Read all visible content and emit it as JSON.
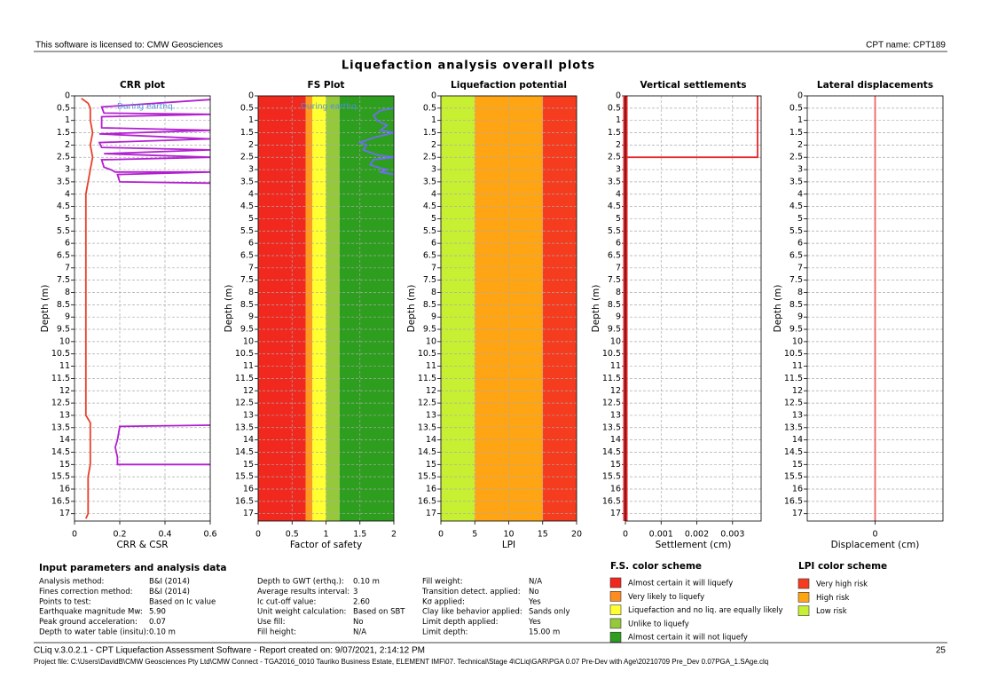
{
  "header": {
    "license": "This software is licensed to: CMW Geosciences",
    "cpt_name": "CPT name: CPT189",
    "title": "Liquefaction analysis overall plots"
  },
  "chart_data": [
    {
      "type": "line",
      "title": "CRR plot",
      "xlabel": "CRR & CSR",
      "ylabel": "Depth (m)",
      "y_inverted": true,
      "grid": true,
      "annotation": "During earthq.",
      "xlim": [
        0,
        0.6
      ],
      "xticks": [
        0,
        0.2,
        0.4,
        0.6
      ],
      "ylim": [
        0,
        17.3
      ],
      "yticks": [
        0,
        0.5,
        1,
        1.5,
        2,
        2.5,
        3,
        3.5,
        4,
        4.5,
        5,
        5.5,
        6,
        6.5,
        7,
        7.5,
        8,
        8.5,
        9,
        9.5,
        10,
        10.5,
        11,
        11.5,
        12,
        12.5,
        13,
        13.5,
        14,
        14.5,
        15,
        15.5,
        16,
        16.5,
        17
      ],
      "series": [
        {
          "color": "#e8402a",
          "depth": [
            0.1,
            0.3,
            0.5,
            1,
            1.5,
            2,
            2.5,
            3,
            3.5,
            4,
            5,
            6,
            8,
            10,
            12,
            13,
            13.3,
            13.5,
            14,
            15,
            15.5,
            16,
            17,
            17.2
          ],
          "values": [
            0.03,
            0.06,
            0.07,
            0.07,
            0.08,
            0.07,
            0.08,
            0.07,
            0.06,
            0.05,
            0.05,
            0.05,
            0.05,
            0.05,
            0.05,
            0.05,
            0.07,
            0.07,
            0.07,
            0.07,
            0.06,
            0.06,
            0.06,
            0.05
          ]
        },
        {
          "color": "#b21fd0",
          "depth": [
            0.15,
            0.45,
            0.7,
            0.75,
            0.85,
            1.3,
            1.4,
            1.55,
            1.75,
            1.9,
            2.1,
            2.2,
            2.35,
            2.5,
            2.6,
            2.9,
            3.0,
            3.1,
            3.1,
            3.2,
            3.5,
            3.55,
            null,
            13.4,
            13.45,
            14,
            14.3,
            14.7,
            15.0,
            15.0
          ],
          "values": [
            0.6,
            0.12,
            0.13,
            0.6,
            0.12,
            0.12,
            0.6,
            0.11,
            0.6,
            0.11,
            0.12,
            0.6,
            0.13,
            0.6,
            0.12,
            0.13,
            0.16,
            0.18,
            0.6,
            0.19,
            0.2,
            0.6,
            null,
            0.6,
            0.2,
            0.19,
            0.18,
            0.19,
            0.19,
            0.6
          ]
        }
      ]
    },
    {
      "type": "line",
      "title": "FS Plot",
      "xlabel": "Factor of safety",
      "ylabel": "Depth (m)",
      "y_inverted": true,
      "grid": true,
      "annotation": "During earthq.",
      "bands": {
        "edges": [
          0,
          0.7,
          0.8,
          1,
          1.2,
          2
        ],
        "colors": [
          "#f0281e",
          "#ff9a1e",
          "#ffff32",
          "#96c83c",
          "#2d9e1e"
        ]
      },
      "xlim": [
        0,
        2
      ],
      "xticks": [
        0,
        0.5,
        1,
        1.5,
        2
      ],
      "ylim": [
        0,
        17.3
      ],
      "yticks": [
        0,
        0.5,
        1,
        1.5,
        2,
        2.5,
        3,
        3.5,
        4,
        4.5,
        5,
        5.5,
        6,
        6.5,
        7,
        7.5,
        8,
        8.5,
        9,
        9.5,
        10,
        10.5,
        11,
        11.5,
        12,
        12.5,
        13,
        13.5,
        14,
        14.5,
        15,
        15.5,
        16,
        16.5,
        17
      ],
      "series": [
        {
          "color": "#6e6ef0",
          "depth": [
            0.5,
            0.6,
            0.8,
            1.0,
            1.2,
            1.4,
            1.5,
            1.7,
            1.9,
            2.0,
            2.2,
            2.4,
            2.5,
            2.6,
            2.8,
            2.9,
            3.0,
            3.1,
            3.2
          ],
          "values": [
            2,
            1.8,
            1.7,
            1.75,
            1.9,
            1.8,
            2,
            1.7,
            1.5,
            1.6,
            1.55,
            1.75,
            2,
            1.7,
            1.65,
            1.75,
            1.9,
            1.8,
            2
          ]
        }
      ]
    },
    {
      "type": "line",
      "title": "Liquefaction potential",
      "xlabel": "LPI",
      "ylabel": "Depth (m)",
      "y_inverted": true,
      "grid": true,
      "bands": {
        "edges": [
          0,
          5,
          15,
          20
        ],
        "colors": [
          "#c8f032",
          "#ffa514",
          "#f53c1e"
        ]
      },
      "xlim": [
        0,
        20
      ],
      "xticks": [
        0,
        5,
        10,
        15,
        20
      ],
      "ylim": [
        0,
        17.3
      ],
      "yticks": [
        0,
        0.5,
        1,
        1.5,
        2,
        2.5,
        3,
        3.5,
        4,
        4.5,
        5,
        5.5,
        6,
        6.5,
        7,
        7.5,
        8,
        8.5,
        9,
        9.5,
        10,
        10.5,
        11,
        11.5,
        12,
        12.5,
        13,
        13.5,
        14,
        14.5,
        15,
        15.5,
        16,
        16.5,
        17
      ],
      "series": []
    },
    {
      "type": "line",
      "title": "Vertical settlements",
      "xlabel": "Settlement (cm)",
      "ylabel": "Depth (m)",
      "y_inverted": true,
      "grid": true,
      "xlim": [
        0,
        0.0038
      ],
      "xticks": [
        0,
        0.001,
        0.002,
        0.003
      ],
      "ylim": [
        0,
        17.3
      ],
      "yticks": [
        0,
        0.5,
        1,
        1.5,
        2,
        2.5,
        3,
        3.5,
        4,
        4.5,
        5,
        5.5,
        6,
        6.5,
        7,
        7.5,
        8,
        8.5,
        9,
        9.5,
        10,
        10.5,
        11,
        11.5,
        12,
        12.5,
        13,
        13.5,
        14,
        14.5,
        15,
        15.5,
        16,
        16.5,
        17
      ],
      "series": [
        {
          "color": "#e8262a",
          "depth": [
            0,
            2.5,
            2.5
          ],
          "values": [
            0.0037,
            0.0037,
            0
          ]
        },
        {
          "color": "#e8262a",
          "line_width": 5,
          "depth": [
            0,
            17.3
          ],
          "values": [
            0,
            0
          ]
        }
      ]
    },
    {
      "type": "line",
      "title": "Lateral displacements",
      "xlabel": "Displacement (cm)",
      "ylabel": "Depth (m)",
      "y_inverted": true,
      "grid": true,
      "xlim": [
        -1,
        1
      ],
      "xticks": [
        0
      ],
      "ylim": [
        0,
        17.3
      ],
      "yticks": [
        0,
        0.5,
        1,
        1.5,
        2,
        2.5,
        3,
        3.5,
        4,
        4.5,
        5,
        5.5,
        6,
        6.5,
        7,
        7.5,
        8,
        8.5,
        9,
        9.5,
        10,
        10.5,
        11,
        11.5,
        12,
        12.5,
        13,
        13.5,
        14,
        14.5,
        15,
        15.5,
        16,
        16.5,
        17
      ],
      "series": [
        {
          "color": "#f06464",
          "depth": [
            0,
            17.3
          ],
          "values": [
            0,
            0
          ]
        }
      ]
    }
  ],
  "parameters": {
    "title": "Input parameters and analysis data",
    "columns": [
      [
        [
          "Analysis method:",
          "B&I (2014)"
        ],
        [
          "Fines correction method:",
          "B&I (2014)"
        ],
        [
          "Points to test:",
          "Based on Ic value"
        ],
        [
          "Earthquake magnitude Mw:",
          "5.90"
        ],
        [
          "Peak ground acceleration:",
          "0.07"
        ],
        [
          "Depth to water table (insitu):",
          "0.10 m"
        ]
      ],
      [
        [
          "Depth to GWT (erthq.):",
          "0.10 m"
        ],
        [
          "Average results interval:",
          "3"
        ],
        [
          "Ic cut-off value:",
          "2.60"
        ],
        [
          "Unit weight calculation:",
          "Based on SBT"
        ],
        [
          "Use fill:",
          "No"
        ],
        [
          "Fill height:",
          "N/A"
        ]
      ],
      [
        [
          "Fill weight:",
          "N/A"
        ],
        [
          "Transition detect. applied:",
          "No"
        ],
        [
          "Kσ applied:",
          "Yes"
        ],
        [
          "Clay like behavior applied:",
          "Sands only"
        ],
        [
          "Limit depth applied:",
          "Yes"
        ],
        [
          "Limit depth:",
          "15.00 m"
        ]
      ]
    ]
  },
  "fs_scheme": {
    "title": "F.S. color scheme",
    "items": [
      {
        "label": "Almost certain it will liquefy",
        "color": "#f0281e"
      },
      {
        "label": "Very likely to liquefy",
        "color": "#ff8c1e"
      },
      {
        "label": "Liquefaction and no liq. are equally likely",
        "color": "#ffff32"
      },
      {
        "label": "Unlike to liquefy",
        "color": "#96c83c"
      },
      {
        "label": "Almost certain it will not liquefy",
        "color": "#2d9e1e"
      }
    ]
  },
  "lpi_scheme": {
    "title": "LPI color scheme",
    "items": [
      {
        "label": "Very high risk",
        "color": "#f53c1e"
      },
      {
        "label": "High risk",
        "color": "#ffa514"
      },
      {
        "label": "Low risk",
        "color": "#c8f032"
      }
    ]
  },
  "footer": {
    "software": "CLiq v.3.0.2.1 - CPT Liquefaction Assessment Software - Report created on: 9/07/2021, 2:14:12 PM",
    "page": "25",
    "project": "Project file: C:\\Users\\DavidB\\CMW Geosciences Pty Ltd\\CMW Connect - TGA2016_0010 Tauriko Business Estate, ELEMENT IMF\\07. Technical\\Stage 4\\CLiq\\GAR\\PGA 0.07 Pre-Dev with Age\\20210709 Pre_Dev 0.07PGA_1.SAge.clq"
  }
}
